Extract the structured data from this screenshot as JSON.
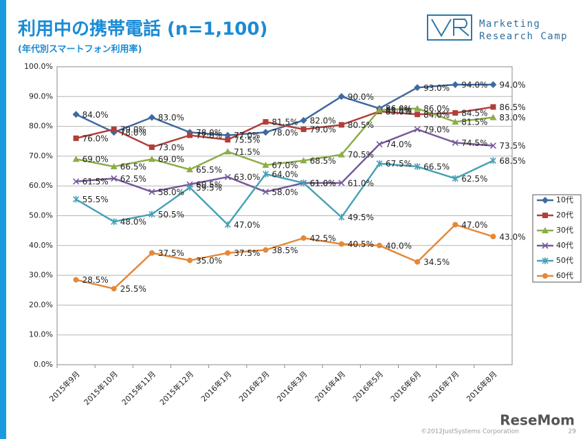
{
  "chart_data": {
    "type": "line",
    "title": "利用中の携帯電話 (n=1,100)",
    "subtitle": "(年代別スマートフォン利用率)",
    "logo": [
      "Marketing",
      "Research Camp"
    ],
    "footer": "©2012JustSystems Corporation",
    "page_number": 29,
    "watermark": "ReseMom",
    "categories": [
      "2015年9月",
      "2015年10月",
      "2015年11月",
      "2015年12月",
      "2016年1月",
      "2016年2月",
      "2016年3月",
      "2016年4月",
      "2016年5月",
      "2016年6月",
      "2016年7月",
      "2016年8月"
    ],
    "ylim": [
      0,
      100
    ],
    "yticks": [
      {
        "value": 0,
        "label": "0.0%"
      },
      {
        "value": 10,
        "label": "10.0%"
      },
      {
        "value": 20,
        "label": "20.0%"
      },
      {
        "value": 30,
        "label": "30.0%"
      },
      {
        "value": 40,
        "label": "40.0%"
      },
      {
        "value": 50,
        "label": "50.0%"
      },
      {
        "value": 60,
        "label": "60.0%"
      },
      {
        "value": 70,
        "label": "70.0%"
      },
      {
        "value": 80,
        "label": "80.0%"
      },
      {
        "value": 90,
        "label": "90.0%"
      },
      {
        "value": 100,
        "label": "100.0%"
      }
    ],
    "grid": true,
    "legend": "right",
    "series": [
      {
        "name": "10代",
        "color": "#3f69a0",
        "marker": "diamond",
        "values": [
          84.0,
          78.0,
          83.0,
          78.0,
          77.0,
          78.0,
          82.0,
          90.0,
          86.0,
          93.0,
          94.0,
          94.0
        ],
        "value_labels": [
          "84.0%",
          "78.0%",
          "83.0%",
          "78.0%",
          "77.0%",
          "78.0%",
          "82.0%",
          "90.0%",
          "86.0%",
          "93.0%",
          "94.0%",
          "94.0%"
        ]
      },
      {
        "name": "20代",
        "color": "#b03f3b",
        "marker": "square",
        "values": [
          76.0,
          79.0,
          73.0,
          77.0,
          75.5,
          81.5,
          79.0,
          80.5,
          85.0,
          84.0,
          84.5,
          86.5
        ],
        "value_labels": [
          "76.0%",
          "79.0%",
          "73.0%",
          "77.0%",
          "75.5%",
          "81.5%",
          "79.0%",
          "80.5%",
          "85.0%",
          "84.0%",
          "84.5%",
          "86.5%"
        ]
      },
      {
        "name": "30代",
        "color": "#8bad48",
        "marker": "triangle",
        "values": [
          69.0,
          66.5,
          69.0,
          65.5,
          71.5,
          67.0,
          68.5,
          70.5,
          85.5,
          86.0,
          81.5,
          83.0
        ],
        "value_labels": [
          "69.0%",
          "66.5%",
          "69.0%",
          "65.5%",
          "71.5%",
          "67.0%",
          "68.5%",
          "70.5%",
          "85.5%",
          "86.0%",
          "81.5%",
          "83.0%"
        ]
      },
      {
        "name": "40代",
        "color": "#77599a",
        "marker": "x",
        "values": [
          61.5,
          62.5,
          58.0,
          60.5,
          63.0,
          58.0,
          61.0,
          61.0,
          74.0,
          79.0,
          74.5,
          73.5
        ],
        "value_labels": [
          "61.5%",
          "62.5%",
          "58.0%",
          "60.5%",
          "63.0%",
          "58.0%",
          "61.0%",
          "61.0%",
          "74.0%",
          "79.0%",
          "74.5%",
          "73.5%"
        ]
      },
      {
        "name": "50代",
        "color": "#47a1b6",
        "marker": "star",
        "values": [
          55.5,
          48.0,
          50.5,
          59.5,
          47.0,
          64.0,
          61.0,
          49.5,
          67.5,
          66.5,
          62.5,
          68.5
        ],
        "value_labels": [
          "55.5%",
          "48.0%",
          "50.5%",
          "59.5%",
          "47.0%",
          "64.0%",
          "61.0%",
          "49.5%",
          "67.5%",
          "66.5%",
          "62.5%",
          "68.5%"
        ]
      },
      {
        "name": "60代",
        "color": "#e4883a",
        "marker": "circle",
        "values": [
          28.5,
          25.5,
          37.5,
          35.0,
          37.5,
          38.5,
          42.5,
          40.5,
          40.0,
          34.5,
          47.0,
          43.0
        ],
        "value_labels": [
          "28.5%",
          "25.5%",
          "37.5%",
          "35.0%",
          "37.5%",
          "38.5%",
          "42.5%",
          "40.5%",
          "40.0%",
          "34.5%",
          "47.0%",
          "43.0%"
        ]
      }
    ]
  }
}
